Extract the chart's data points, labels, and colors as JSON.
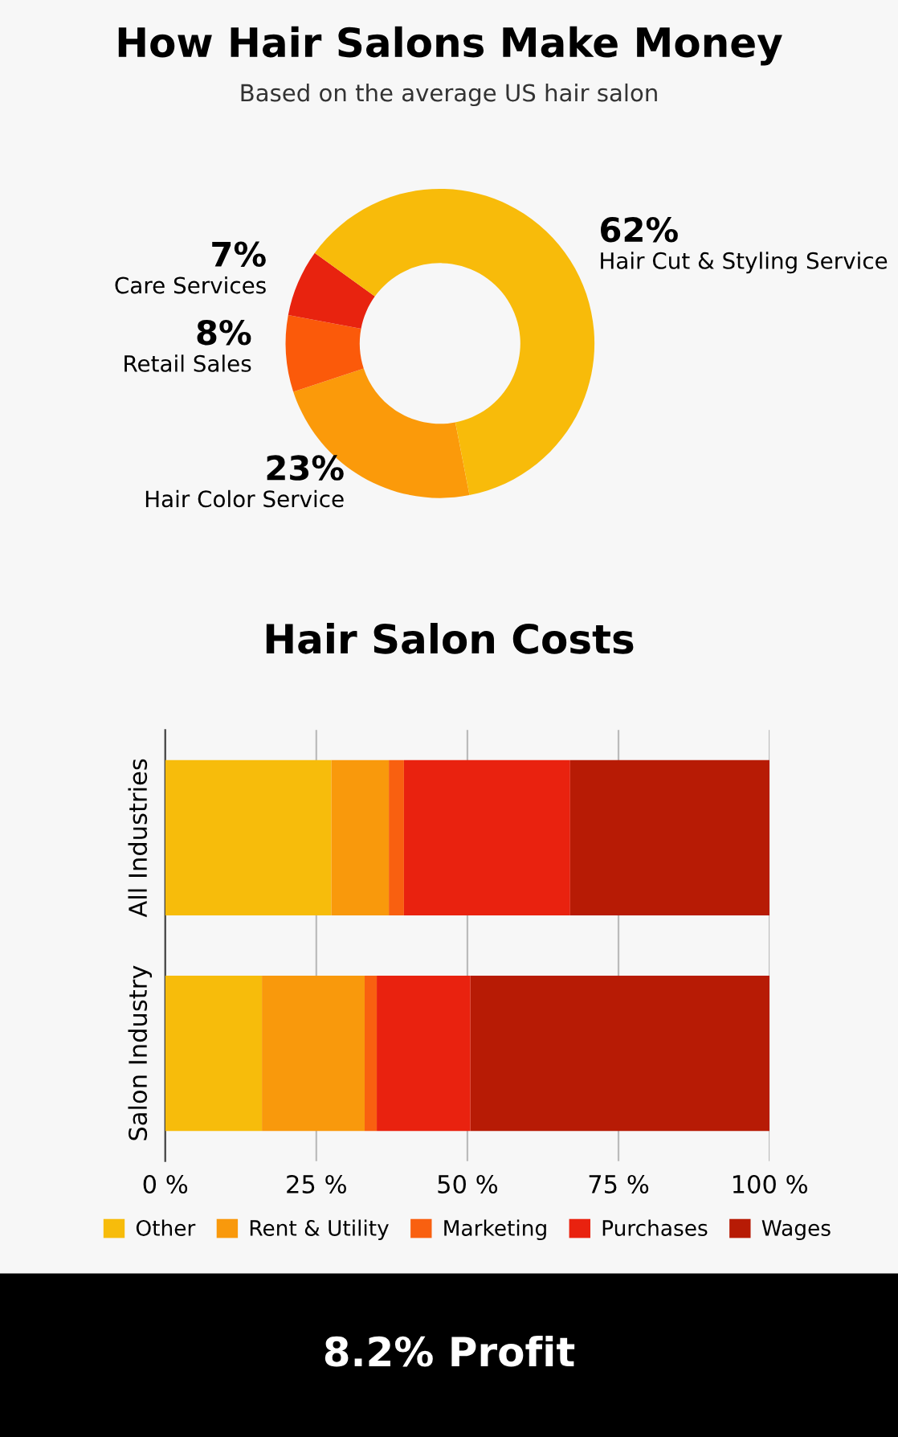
{
  "chart_data": [
    {
      "type": "donut",
      "title": "How Hair Salons Make Money",
      "subtitle": "Based on the average US hair salon",
      "categories": [
        "Hair Color Service",
        "Retail Sales",
        "Care Services",
        "Hair Cut & Styling Service"
      ],
      "values": [
        23,
        8,
        7,
        62
      ],
      "value_labels": [
        "23%",
        "8%",
        "7%",
        "62%"
      ],
      "colors": [
        "#fb9a0a",
        "#fb5a0a",
        "#e8230f",
        "#f8bb0a"
      ]
    },
    {
      "type": "bar",
      "title": "Hair Salon Costs",
      "orientation": "horizontal",
      "stacked": true,
      "categories": [
        "All Industries",
        "Salon Industry"
      ],
      "series": [
        {
          "name": "Other",
          "color": "#f7bc0b",
          "values": [
            27.5,
            16
          ]
        },
        {
          "name": "Rent & Utility",
          "color": "#f9990c",
          "values": [
            9.5,
            17
          ]
        },
        {
          "name": "Marketing",
          "color": "#f96010",
          "values": [
            2.5,
            2
          ]
        },
        {
          "name": "Purchases",
          "color": "#e9220f",
          "values": [
            27.5,
            15.5
          ]
        },
        {
          "name": "Wages",
          "color": "#b71b05",
          "values": [
            33,
            49.5
          ]
        }
      ],
      "xlim": [
        0,
        100
      ],
      "xticks": [
        {
          "value": 0,
          "label": "0 %"
        },
        {
          "value": 25,
          "label": "25 %"
        },
        {
          "value": 50,
          "label": "50 %"
        },
        {
          "value": 75,
          "label": "75 %"
        },
        {
          "value": 100,
          "label": "100 %"
        }
      ],
      "grid": "x",
      "legend": "bottom",
      "annotations": [
        "8.2% Profit"
      ]
    }
  ]
}
